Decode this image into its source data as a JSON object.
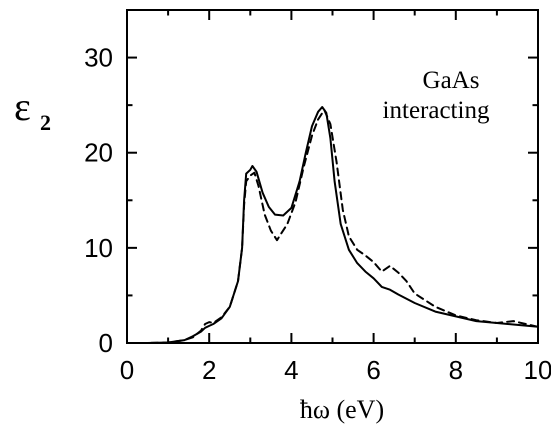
{
  "chart_data": {
    "type": "line",
    "annotation": [
      "GaAs",
      "interacting"
    ],
    "ylabel": {
      "symbol": "ε",
      "subscript": "2"
    },
    "xlabel": "ħω (eV)",
    "xlim": [
      0,
      10
    ],
    "ylim": [
      0,
      35
    ],
    "xticks": [
      0,
      2,
      4,
      6,
      8,
      10
    ],
    "yticks": [
      0,
      10,
      20,
      30
    ],
    "grid": false,
    "series": [
      {
        "style": "solid",
        "color": "#000000",
        "points": [
          [
            0,
            0
          ],
          [
            0.5,
            0
          ],
          [
            1.0,
            0.05
          ],
          [
            1.4,
            0.3
          ],
          [
            1.6,
            0.7
          ],
          [
            1.8,
            1.2
          ],
          [
            1.9,
            1.6
          ],
          [
            2.0,
            1.8
          ],
          [
            2.1,
            2.0
          ],
          [
            2.3,
            2.6
          ],
          [
            2.5,
            3.8
          ],
          [
            2.7,
            6.5
          ],
          [
            2.8,
            10
          ],
          [
            2.85,
            15
          ],
          [
            2.9,
            17.8
          ],
          [
            3.0,
            18.2
          ],
          [
            3.05,
            18.6
          ],
          [
            3.15,
            18.0
          ],
          [
            3.3,
            15.8
          ],
          [
            3.45,
            14.3
          ],
          [
            3.6,
            13.5
          ],
          [
            3.8,
            13.4
          ],
          [
            4.0,
            14.2
          ],
          [
            4.2,
            17.0
          ],
          [
            4.35,
            20.0
          ],
          [
            4.5,
            22.8
          ],
          [
            4.65,
            24.3
          ],
          [
            4.75,
            24.8
          ],
          [
            4.85,
            24.2
          ],
          [
            4.95,
            21.5
          ],
          [
            5.05,
            17.0
          ],
          [
            5.2,
            12.5
          ],
          [
            5.4,
            9.8
          ],
          [
            5.6,
            8.4
          ],
          [
            5.8,
            7.5
          ],
          [
            6.0,
            6.8
          ],
          [
            6.2,
            5.9
          ],
          [
            6.4,
            5.6
          ],
          [
            6.6,
            5.1
          ],
          [
            7.0,
            4.2
          ],
          [
            7.5,
            3.3
          ],
          [
            8.0,
            2.8
          ],
          [
            8.5,
            2.3
          ],
          [
            9.0,
            2.1
          ],
          [
            9.5,
            1.9
          ],
          [
            10.0,
            1.7
          ]
        ]
      },
      {
        "style": "dashed",
        "color": "#000000",
        "points": [
          [
            0,
            0
          ],
          [
            0.5,
            0
          ],
          [
            1.0,
            0.05
          ],
          [
            1.4,
            0.3
          ],
          [
            1.6,
            0.6
          ],
          [
            1.8,
            1.3
          ],
          [
            1.9,
            2.0
          ],
          [
            2.0,
            2.2
          ],
          [
            2.1,
            2.1
          ],
          [
            2.3,
            2.7
          ],
          [
            2.5,
            3.8
          ],
          [
            2.7,
            6.5
          ],
          [
            2.8,
            10
          ],
          [
            2.85,
            14.5
          ],
          [
            2.9,
            17.0
          ],
          [
            3.0,
            17.6
          ],
          [
            3.1,
            17.9
          ],
          [
            3.2,
            16.5
          ],
          [
            3.35,
            13.5
          ],
          [
            3.5,
            11.8
          ],
          [
            3.65,
            10.8
          ],
          [
            3.75,
            11.5
          ],
          [
            3.9,
            12.5
          ],
          [
            4.1,
            14.8
          ],
          [
            4.3,
            18.5
          ],
          [
            4.5,
            21.8
          ],
          [
            4.65,
            23.5
          ],
          [
            4.8,
            24.5
          ],
          [
            4.95,
            23.0
          ],
          [
            5.1,
            19.0
          ],
          [
            5.25,
            14.0
          ],
          [
            5.4,
            11.2
          ],
          [
            5.6,
            9.8
          ],
          [
            5.8,
            9.2
          ],
          [
            6.0,
            8.5
          ],
          [
            6.2,
            7.5
          ],
          [
            6.4,
            8.1
          ],
          [
            6.6,
            7.4
          ],
          [
            6.8,
            6.5
          ],
          [
            7.0,
            5.2
          ],
          [
            7.5,
            3.8
          ],
          [
            8.0,
            2.9
          ],
          [
            8.5,
            2.4
          ],
          [
            9.0,
            2.1
          ],
          [
            9.4,
            2.3
          ],
          [
            9.7,
            2.0
          ],
          [
            10.0,
            1.7
          ]
        ]
      }
    ]
  }
}
